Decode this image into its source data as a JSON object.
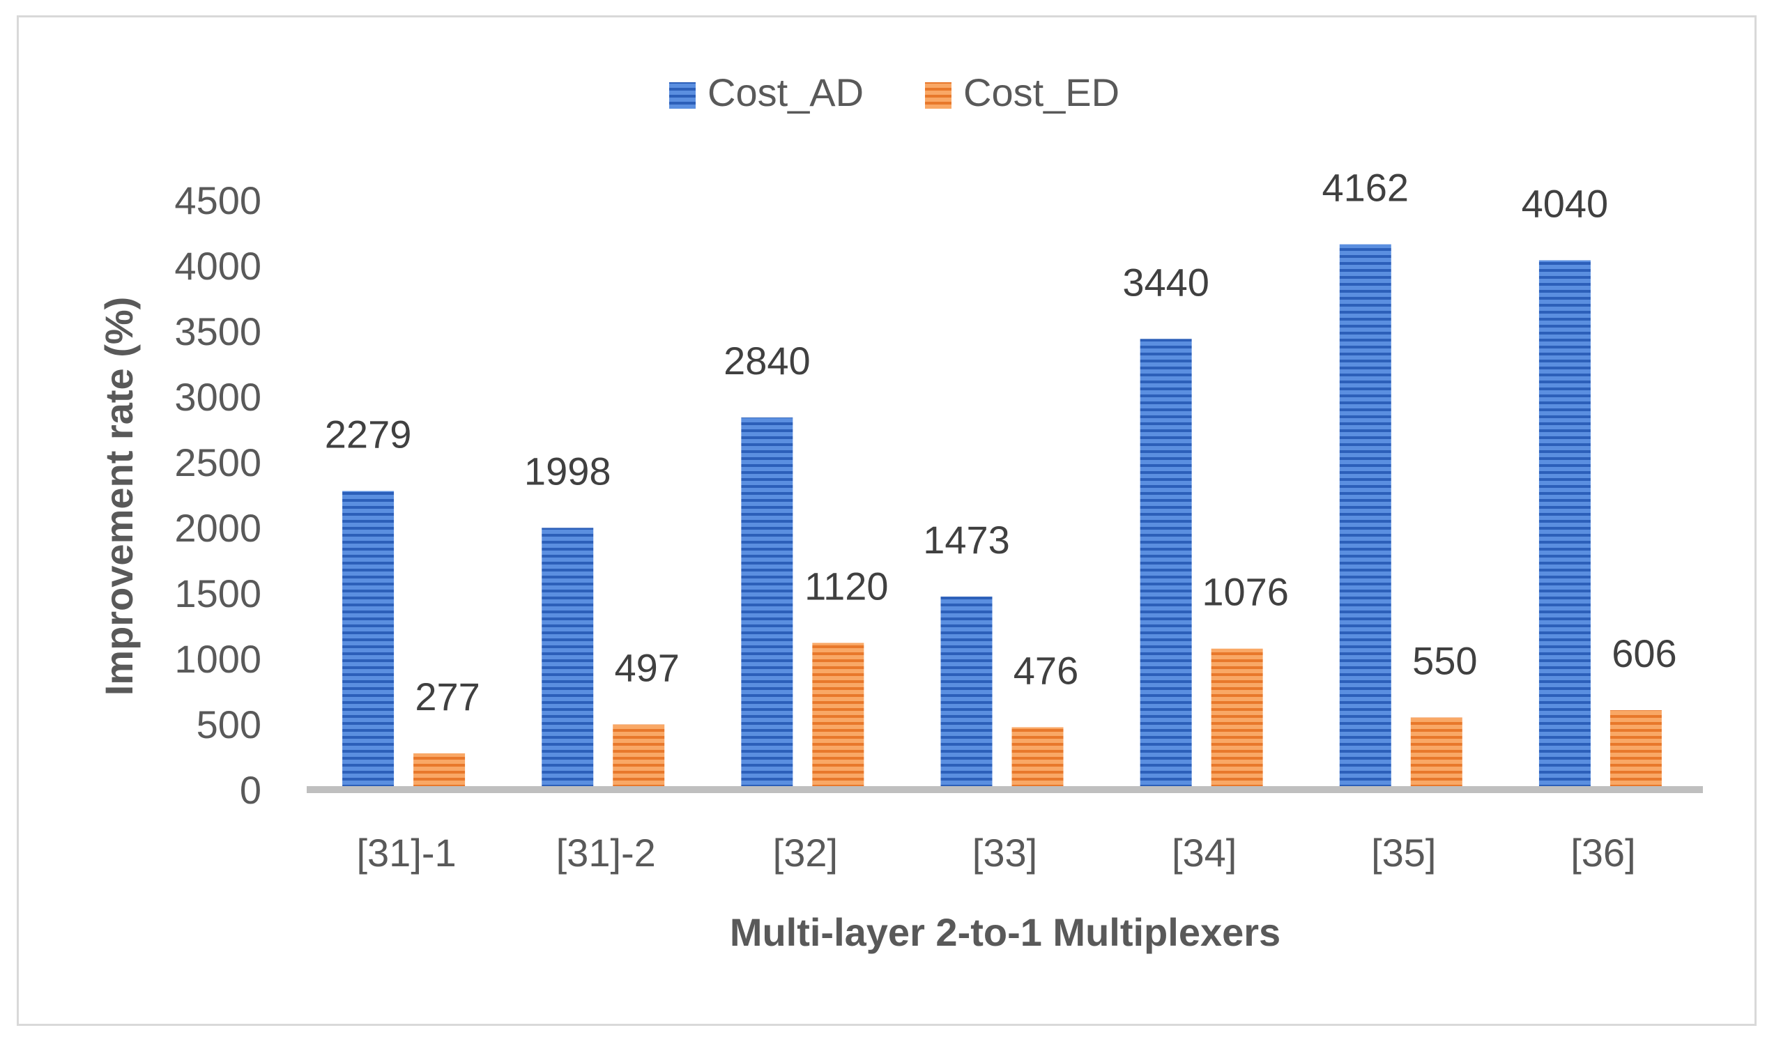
{
  "chart_data": {
    "type": "bar",
    "title": "",
    "xlabel": "Multi-layer 2-to-1 Multiplexers",
    "ylabel": "Improvement rate (%)",
    "categories": [
      "[31]-1",
      "[31]-2",
      "[32]",
      "[33]",
      "[34]",
      "[35]",
      "[36]"
    ],
    "series": [
      {
        "name": "Cost_AD",
        "values": [
          2279,
          1998,
          2840,
          1473,
          3440,
          4162,
          4040
        ],
        "labels": [
          "2279",
          "1998",
          "2840",
          "1473",
          "3440",
          "4162",
          "4040"
        ],
        "color": "#4a7fd6",
        "stripe": "#2f62bd"
      },
      {
        "name": "Cost_ED",
        "values": [
          277,
          497,
          1120,
          476,
          1076,
          550,
          606
        ],
        "labels": [
          "277",
          "497",
          "1120",
          "476",
          "1076",
          "550",
          "606"
        ],
        "color": "#f79a4f",
        "stripe": "#e8782b"
      }
    ],
    "ylim": [
      0,
      4500
    ],
    "yticks": [
      "0",
      "500",
      "1000",
      "1500",
      "2000",
      "2500",
      "3000",
      "3500",
      "4000",
      "4500"
    ],
    "legend": "top",
    "grid": false
  }
}
